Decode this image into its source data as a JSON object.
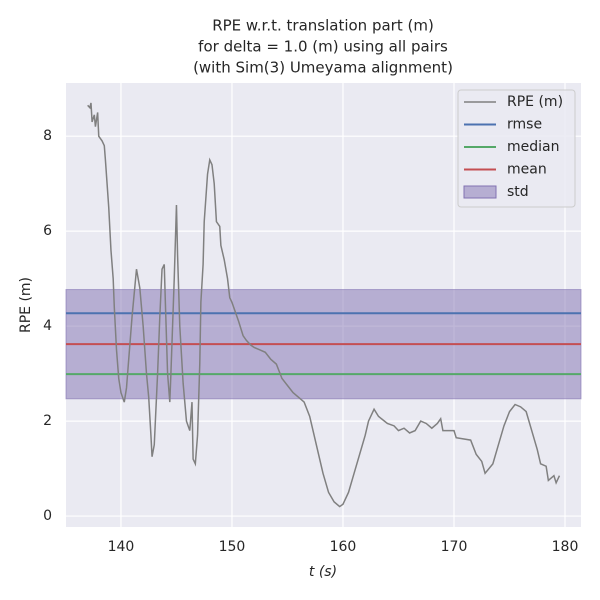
{
  "chart_data": {
    "type": "line",
    "title": [
      "RPE w.r.t. translation part (m)",
      "for delta = 1.0 (m) using all pairs",
      "(with Sim(3) Umeyama alignment)"
    ],
    "xlabel": "t (s)",
    "ylabel": "RPE (m)",
    "xlim": [
      135.05,
      181.44
    ],
    "ylim": [
      -0.23,
      9.12
    ],
    "xticks": [
      140,
      150,
      160,
      170,
      180
    ],
    "yticks": [
      0,
      2,
      4,
      6,
      8
    ],
    "grid": true,
    "legend": "upper right",
    "series": [
      {
        "name": "RPE (m)",
        "color": "#808080",
        "x": [
          137.0,
          137.2,
          137.3,
          137.4,
          137.6,
          137.7,
          137.9,
          138.0,
          138.3,
          138.5,
          138.6,
          138.9,
          139.1,
          139.3,
          139.4,
          139.6,
          139.8,
          140.0,
          140.3,
          140.5,
          141.0,
          141.4,
          141.7,
          142.0,
          142.3,
          142.5,
          142.7,
          142.8,
          143.0,
          143.3,
          143.5,
          143.7,
          143.9,
          144.0,
          144.2,
          144.4,
          144.5,
          144.8,
          145.0,
          145.1,
          145.3,
          145.6,
          145.9,
          146.2,
          146.4,
          146.5,
          146.7,
          146.9,
          147.1,
          147.2,
          147.4,
          147.5,
          147.8,
          148.0,
          148.2,
          148.4,
          148.6,
          148.9,
          149.0,
          149.3,
          149.6,
          149.8,
          150.0,
          150.3,
          150.6,
          151.0,
          151.3,
          151.7,
          152.0,
          152.5,
          153.0,
          153.5,
          154.0,
          154.5,
          155.0,
          155.5,
          156.0,
          156.5,
          157.0,
          157.3,
          157.8,
          158.2,
          158.7,
          159.2,
          159.7,
          160.0,
          160.5,
          161.0,
          161.5,
          162.0,
          162.3,
          162.8,
          163.2,
          164.0,
          164.6,
          165.0,
          165.5,
          166.0,
          166.5,
          167.0,
          167.5,
          168.0,
          168.5,
          168.8,
          169.0,
          170.0,
          170.2,
          171.5,
          172.0,
          172.5,
          172.8,
          173.5,
          174.0,
          174.5,
          175.0,
          175.5,
          176.0,
          176.5,
          177.0,
          177.5,
          177.8,
          178.3,
          178.5,
          179.0,
          179.2,
          179.5
        ],
        "values": [
          8.65,
          8.6,
          8.7,
          8.3,
          8.45,
          8.2,
          8.5,
          8.0,
          7.9,
          7.8,
          7.5,
          6.5,
          5.6,
          5.0,
          4.4,
          3.5,
          2.9,
          2.6,
          2.4,
          2.7,
          4.2,
          5.2,
          4.8,
          4.0,
          3.0,
          2.5,
          1.7,
          1.25,
          1.5,
          3.0,
          4.2,
          5.2,
          5.3,
          4.5,
          3.0,
          2.4,
          3.0,
          5.0,
          6.55,
          5.5,
          4.0,
          2.8,
          2.0,
          1.8,
          2.4,
          1.2,
          1.1,
          1.7,
          3.2,
          4.5,
          5.3,
          6.2,
          7.2,
          7.5,
          7.4,
          7.0,
          6.2,
          6.1,
          5.7,
          5.4,
          5.0,
          4.6,
          4.5,
          4.3,
          4.1,
          3.8,
          3.7,
          3.6,
          3.55,
          3.5,
          3.45,
          3.3,
          3.2,
          2.9,
          2.75,
          2.6,
          2.5,
          2.4,
          2.1,
          1.8,
          1.3,
          0.9,
          0.5,
          0.3,
          0.2,
          0.25,
          0.5,
          0.9,
          1.3,
          1.7,
          2.0,
          2.25,
          2.1,
          1.95,
          1.9,
          1.8,
          1.85,
          1.75,
          1.8,
          2.0,
          1.95,
          1.85,
          1.95,
          2.05,
          1.8,
          1.8,
          1.65,
          1.6,
          1.3,
          1.15,
          0.9,
          1.1,
          1.5,
          1.9,
          2.2,
          2.35,
          2.3,
          2.2,
          1.8,
          1.4,
          1.1,
          1.05,
          0.75,
          0.85,
          0.7,
          0.85
        ]
      },
      {
        "name": "rmse",
        "color": "#4c72b0",
        "value": 4.27
      },
      {
        "name": "median",
        "color": "#55a868",
        "value": 2.99
      },
      {
        "name": "mean",
        "color": "#c44e52",
        "value": 3.62
      },
      {
        "name": "std",
        "color": "#8172b2",
        "value": 1.15
      }
    ]
  }
}
